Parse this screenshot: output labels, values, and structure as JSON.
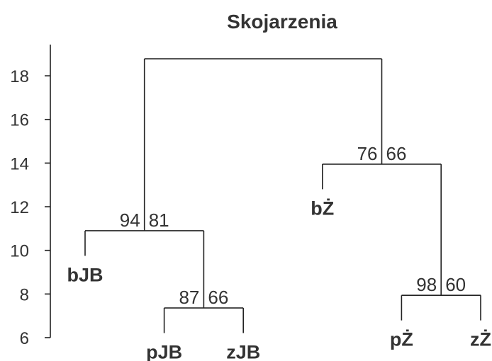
{
  "chart_data": {
    "type": "dendrogram",
    "title": "Skojarzenia",
    "labels": [
      "bJB",
      "pJB",
      "zJB",
      "bŻ",
      "pŻ",
      "zŻ"
    ],
    "merges": [
      {
        "pair": [
          -2,
          -3
        ],
        "height": 7.36,
        "au": 87,
        "bp": 66
      },
      {
        "pair": [
          -1,
          0
        ],
        "height": 10.9,
        "au": 94,
        "bp": 81
      },
      {
        "pair": [
          -5,
          -6
        ],
        "height": 7.94,
        "au": 98,
        "bp": 60
      },
      {
        "pair": [
          -4,
          2
        ],
        "height": 13.95,
        "au": 76,
        "bp": 66
      },
      {
        "pair": [
          1,
          3
        ],
        "height": 18.78
      }
    ],
    "hang": 1.15,
    "ylim": [
      6,
      19.43
    ],
    "yticks": [
      6,
      8,
      10,
      12,
      14,
      16,
      18
    ]
  }
}
